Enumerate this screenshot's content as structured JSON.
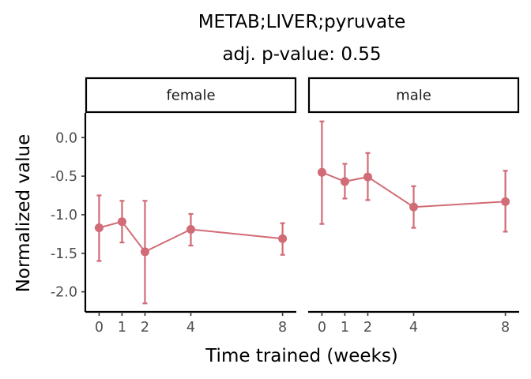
{
  "chart_data": {
    "type": "line",
    "title": "METAB;LIVER;pyruvate",
    "subtitle": "adj. p-value: 0.55",
    "xlabel": "Time trained (weeks)",
    "ylabel": "Normalized value",
    "x_ticks": [
      0,
      1,
      2,
      4,
      8
    ],
    "xlim": [
      -0.6,
      8.6
    ],
    "y_ticks": [
      0.0,
      -0.5,
      -1.0,
      -1.5,
      -2.0
    ],
    "y_tick_labels": [
      "0.0",
      "-0.5",
      "-1.0",
      "-1.5",
      "-2.0"
    ],
    "ylim": [
      -2.26,
      0.32
    ],
    "grid": false,
    "series_color": "#d16b75",
    "panels": [
      {
        "name": "female",
        "points": [
          {
            "x": 0,
            "y": -1.17,
            "lo": -1.6,
            "hi": -0.75
          },
          {
            "x": 1,
            "y": -1.09,
            "lo": -1.36,
            "hi": -0.82
          },
          {
            "x": 2,
            "y": -1.48,
            "lo": -2.15,
            "hi": -0.82
          },
          {
            "x": 4,
            "y": -1.19,
            "lo": -1.4,
            "hi": -0.99
          },
          {
            "x": 8,
            "y": -1.31,
            "lo": -1.52,
            "hi": -1.11
          }
        ]
      },
      {
        "name": "male",
        "points": [
          {
            "x": 0,
            "y": -0.45,
            "lo": -1.12,
            "hi": 0.21
          },
          {
            "x": 1,
            "y": -0.57,
            "lo": -0.79,
            "hi": -0.34
          },
          {
            "x": 2,
            "y": -0.51,
            "lo": -0.81,
            "hi": -0.2
          },
          {
            "x": 4,
            "y": -0.9,
            "lo": -1.17,
            "hi": -0.63
          },
          {
            "x": 8,
            "y": -0.83,
            "lo": -1.22,
            "hi": -0.43
          }
        ]
      }
    ]
  }
}
